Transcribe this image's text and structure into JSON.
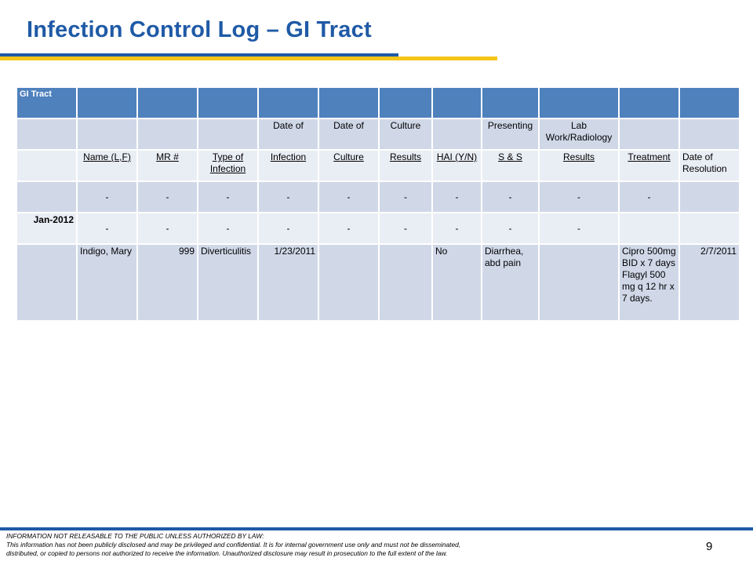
{
  "slide": {
    "title": "Infection Control Log – GI Tract",
    "page_number": "9"
  },
  "table": {
    "header_label": "GI Tract",
    "row1": [
      "",
      "",
      "",
      "",
      "Date of",
      "Date of",
      "Culture",
      "",
      "Presenting",
      "Lab Work/Radiology",
      "",
      ""
    ],
    "row2": [
      "",
      "Name (L,F)",
      "MR #",
      "Type of Infection",
      "Infection",
      "Culture",
      "Results",
      "HAI (Y/N)",
      "S & S",
      "Results",
      "Treatment",
      "Date of Resolution"
    ],
    "row3": [
      "",
      "-",
      "-",
      "-",
      "-",
      "-",
      "-",
      "-",
      "-",
      "-",
      "-",
      ""
    ],
    "row4": [
      "Jan-2012",
      "-",
      "-",
      "-",
      "-",
      "-",
      "-",
      "-",
      "-",
      "-",
      "",
      ""
    ],
    "row5": [
      "",
      "Indigo, Mary",
      "999",
      "Diverticulitis",
      "1/23/2011",
      "",
      "",
      "No",
      "Diarrhea, abd pain",
      "",
      "Cipro 500mg BID x 7 days Flagyl 500 mg q 12 hr x 7 days.",
      "2/7/2011"
    ]
  },
  "footer": {
    "line1": "INFORMATION NOT RELEASABLE TO THE PUBLIC UNLESS AUTHORIZED BY LAW:",
    "line2": "This information has not been publicly disclosed and may be privileged and confidential.  It is for internal government use only and must not be disseminated,",
    "line3": "distributed, or copied to persons not authorized to receive the information.  Unauthorized disclosure may result in prosecution to the full extent of the law."
  },
  "colors": {
    "title": "#1f5aa6",
    "accent_yellow": "#f5c518",
    "table_header": "#4f81bd",
    "row_dark": "#d0d8e8",
    "row_light": "#e9edf4"
  }
}
